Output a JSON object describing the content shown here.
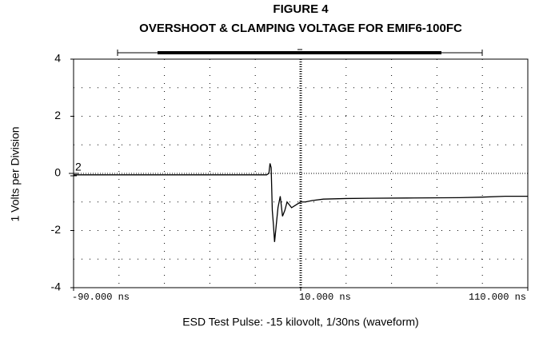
{
  "chart_data": {
    "type": "line",
    "title": "FIGURE 4",
    "subtitle": "OVERSHOOT & CLAMPING VOLTAGE FOR EMIF6-100FC",
    "y_label": "1 Volts per Division",
    "x_label": "ESD Test Pulse:  -15 kilovolt, 1/30ns (waveform)",
    "annotations": [
      "2"
    ],
    "x": [
      -90,
      -60,
      -30,
      -5,
      -4,
      -3.5,
      -3,
      -2.5,
      -2,
      -1.5,
      -1,
      0,
      1,
      2,
      3,
      4,
      6,
      8,
      10,
      12,
      15,
      20,
      30,
      40,
      60,
      80,
      90,
      100,
      110
    ],
    "values": [
      -0.05,
      -0.05,
      -0.05,
      -0.05,
      0.0,
      0.35,
      0.2,
      -1.3,
      -1.8,
      -2.4,
      -2.0,
      -1.2,
      -0.8,
      -1.5,
      -1.3,
      -1.0,
      -1.2,
      -1.1,
      -1.0,
      -1.0,
      -0.95,
      -0.9,
      -0.88,
      -0.87,
      -0.86,
      -0.85,
      -0.83,
      -0.8,
      -0.8
    ],
    "color": "#000000",
    "xlim": [
      -90,
      110
    ],
    "ylim": [
      -4,
      4
    ],
    "xticks": [
      {
        "value": -90,
        "label": "-90.000 ns"
      },
      {
        "value": 10,
        "label": "10.000 ns"
      },
      {
        "value": 110,
        "label": "110.000 ns"
      }
    ],
    "yticks": [
      4,
      2,
      0,
      -2,
      -4
    ],
    "grid": true
  }
}
